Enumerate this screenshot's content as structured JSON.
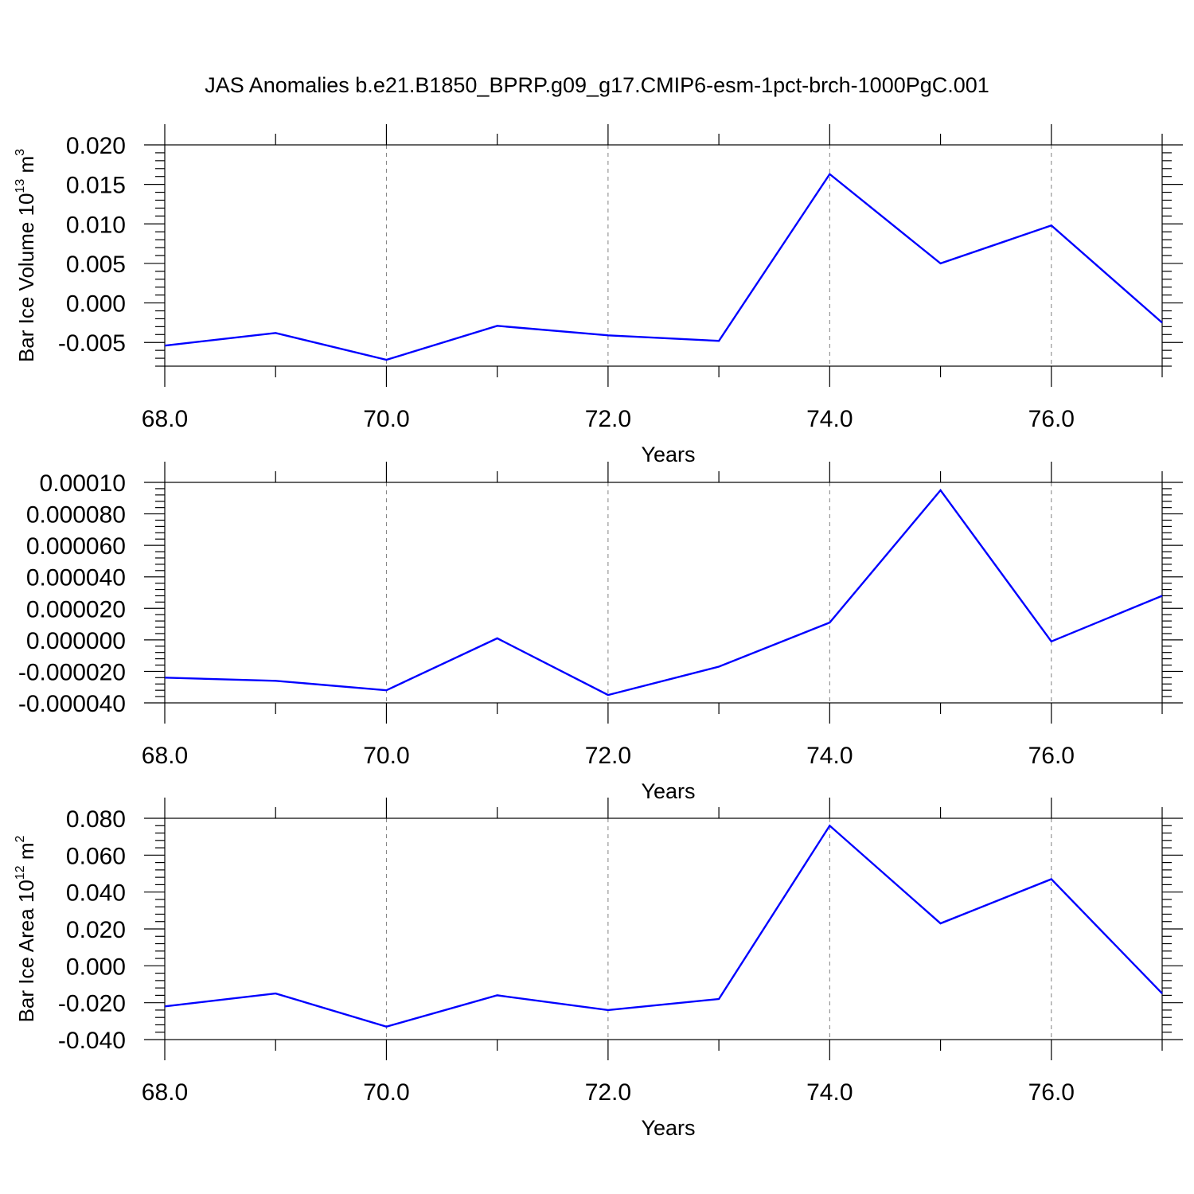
{
  "title": "JAS Anomalies b.e21.B1850_BPRP.g09_g17.CMIP6-esm-1pct-brch-1000PgC.001",
  "colors": {
    "line": "#0000ff",
    "axis": "#000000",
    "grid": "#808080"
  },
  "chart_data": [
    {
      "type": "line",
      "ylabel": "Bar Ice Volume 10",
      "ylabel_exp": "13",
      "ylabel_unit": " m",
      "ylabel_unit_exp": "3",
      "xlabel": "Years",
      "xlim": [
        68,
        77
      ],
      "ylim": [
        -0.008,
        0.02
      ],
      "x_ticks": [
        "68.0",
        "70.0",
        "72.0",
        "74.0",
        "76.0"
      ],
      "y_ticks": [
        "-0.005",
        "0.000",
        "0.005",
        "0.010",
        "0.015",
        "0.020"
      ],
      "grid": "vertical dashed at major x ticks",
      "x": [
        68,
        69,
        70,
        71,
        72,
        73,
        74,
        75,
        76,
        77
      ],
      "y": [
        -0.0054,
        -0.0038,
        -0.0072,
        -0.0029,
        -0.0041,
        -0.0048,
        0.0163,
        0.005,
        0.0098,
        -0.0025
      ]
    },
    {
      "type": "line",
      "ylabel": "",
      "ylabel_exp": "",
      "ylabel_unit": "",
      "ylabel_unit_exp": "",
      "xlabel": "Years",
      "xlim": [
        68,
        77
      ],
      "ylim": [
        -4e-05,
        0.0001
      ],
      "x_ticks": [
        "68.0",
        "70.0",
        "72.0",
        "74.0",
        "76.0"
      ],
      "y_ticks": [
        "-0.000040",
        "-0.000020",
        "0.000000",
        "0.000020",
        "0.000040",
        "0.000060",
        "0.000080",
        "0.00010"
      ],
      "grid": "vertical dashed at major x ticks",
      "x": [
        68,
        69,
        70,
        71,
        72,
        73,
        74,
        75,
        76,
        77
      ],
      "y": [
        -2.4e-05,
        -2.6e-05,
        -3.2e-05,
        1e-06,
        -3.5e-05,
        -1.7e-05,
        1.1e-05,
        9.5e-05,
        -1e-06,
        2.8e-05
      ]
    },
    {
      "type": "line",
      "ylabel": "Bar Ice Area 10",
      "ylabel_exp": "12",
      "ylabel_unit": " m",
      "ylabel_unit_exp": "2",
      "xlabel": "Years",
      "xlim": [
        68,
        77
      ],
      "ylim": [
        -0.04,
        0.08
      ],
      "x_ticks": [
        "68.0",
        "70.0",
        "72.0",
        "74.0",
        "76.0"
      ],
      "y_ticks": [
        "-0.040",
        "-0.020",
        "0.000",
        "0.020",
        "0.040",
        "0.060",
        "0.080"
      ],
      "grid": "vertical dashed at major x ticks",
      "x": [
        68,
        69,
        70,
        71,
        72,
        73,
        74,
        75,
        76,
        77
      ],
      "y": [
        -0.022,
        -0.015,
        -0.033,
        -0.016,
        -0.024,
        -0.018,
        0.076,
        0.023,
        0.047,
        -0.015
      ]
    }
  ]
}
